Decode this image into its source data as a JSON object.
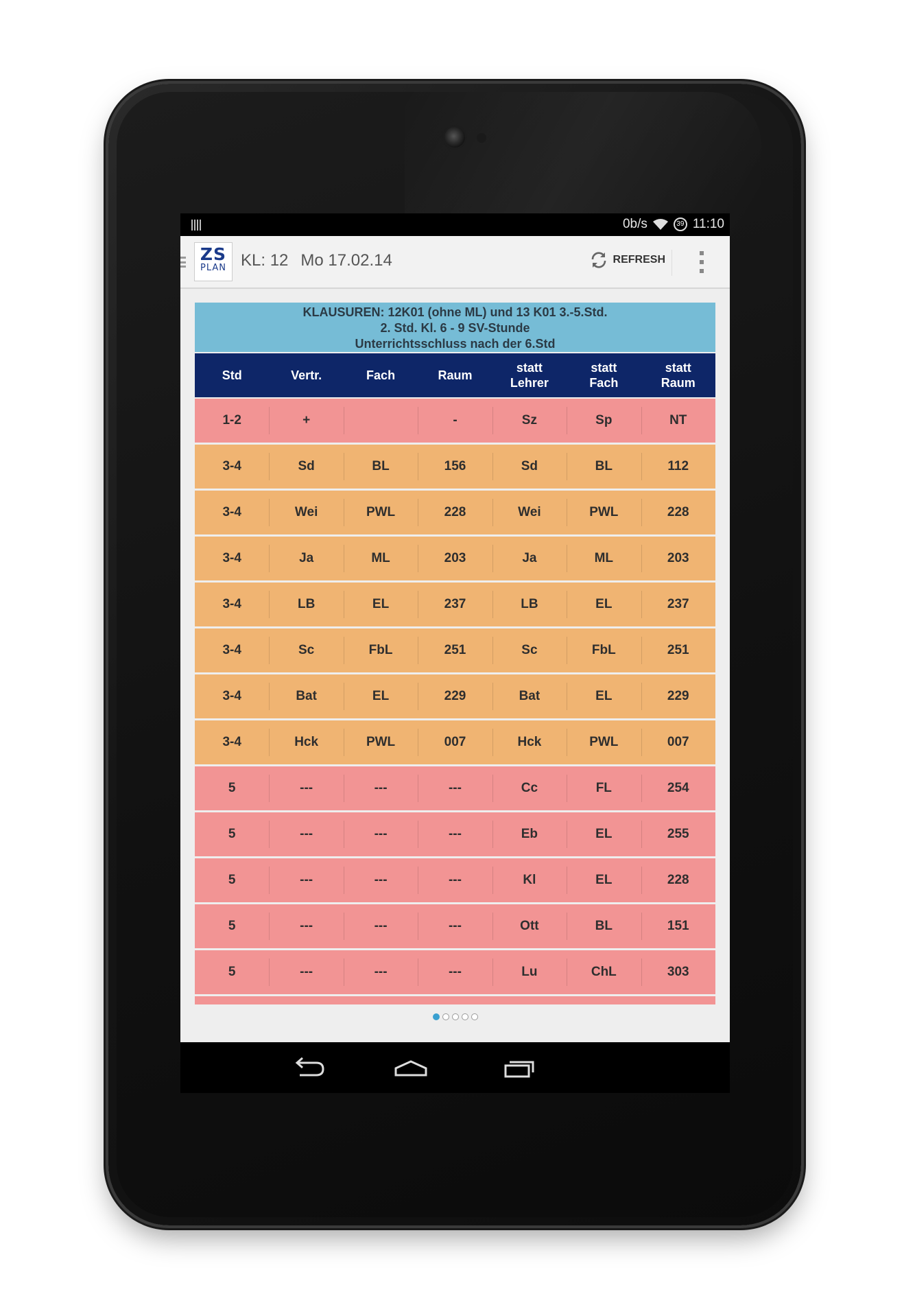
{
  "status_bar": {
    "network_speed": "0b/s",
    "battery_level": "39",
    "time": "11:10"
  },
  "action_bar": {
    "logo_line1": "ZS",
    "logo_line2": "PLAN",
    "class_label": "KL: 12",
    "date_label": "Mo 17.02.14",
    "refresh_label": "REFRESH"
  },
  "info_box": {
    "line1": "KLAUSUREN: 12K01 (ohne ML) und 13 K01 3.-5.Std.",
    "line2": "2. Std. Kl. 6 - 9 SV-Stunde",
    "line3": "Unterrichtsschluss nach der 6.Std"
  },
  "table": {
    "headers": [
      {
        "line1": "Std",
        "line2": ""
      },
      {
        "line1": "Vertr.",
        "line2": ""
      },
      {
        "line1": "Fach",
        "line2": ""
      },
      {
        "line1": "Raum",
        "line2": ""
      },
      {
        "line1": "statt",
        "line2": "Lehrer"
      },
      {
        "line1": "statt",
        "line2": "Fach"
      },
      {
        "line1": "statt",
        "line2": "Raum"
      }
    ],
    "rows": [
      {
        "color": "red",
        "cells": [
          "1-2",
          "+",
          "",
          "-",
          "Sz",
          "Sp",
          "NT"
        ]
      },
      {
        "color": "orange",
        "cells": [
          "3-4",
          "Sd",
          "BL",
          "156",
          "Sd",
          "BL",
          "112"
        ]
      },
      {
        "color": "orange",
        "cells": [
          "3-4",
          "Wei",
          "PWL",
          "228",
          "Wei",
          "PWL",
          "228"
        ]
      },
      {
        "color": "orange",
        "cells": [
          "3-4",
          "Ja",
          "ML",
          "203",
          "Ja",
          "ML",
          "203"
        ]
      },
      {
        "color": "orange",
        "cells": [
          "3-4",
          "LB",
          "EL",
          "237",
          "LB",
          "EL",
          "237"
        ]
      },
      {
        "color": "orange",
        "cells": [
          "3-4",
          "Sc",
          "FbL",
          "251",
          "Sc",
          "FbL",
          "251"
        ]
      },
      {
        "color": "orange",
        "cells": [
          "3-4",
          "Bat",
          "EL",
          "229",
          "Bat",
          "EL",
          "229"
        ]
      },
      {
        "color": "orange",
        "cells": [
          "3-4",
          "Hck",
          "PWL",
          "007",
          "Hck",
          "PWL",
          "007"
        ]
      },
      {
        "color": "red",
        "cells": [
          "5",
          "---",
          "---",
          "---",
          "Cc",
          "FL",
          "254"
        ]
      },
      {
        "color": "red",
        "cells": [
          "5",
          "---",
          "---",
          "---",
          "Eb",
          "EL",
          "255"
        ]
      },
      {
        "color": "red",
        "cells": [
          "5",
          "---",
          "---",
          "---",
          "Kl",
          "EL",
          "228"
        ]
      },
      {
        "color": "red",
        "cells": [
          "5",
          "---",
          "---",
          "---",
          "Ott",
          "BL",
          "151"
        ]
      },
      {
        "color": "red",
        "cells": [
          "5",
          "---",
          "---",
          "---",
          "Lu",
          "ChL",
          "303"
        ]
      }
    ]
  },
  "pager": {
    "page_count": 5,
    "active_index": 0
  },
  "colors": {
    "info_bg": "#76bcd6",
    "header_bg": "#0e2668",
    "row_red": "#f29494",
    "row_orange": "#f0b472",
    "pager_active": "#3aa0d0"
  },
  "icons": {
    "refresh": "refresh-icon",
    "overflow": "overflow-menu-icon",
    "nav_back": "back-icon",
    "nav_home": "home-icon",
    "nav_recents": "recents-icon"
  }
}
